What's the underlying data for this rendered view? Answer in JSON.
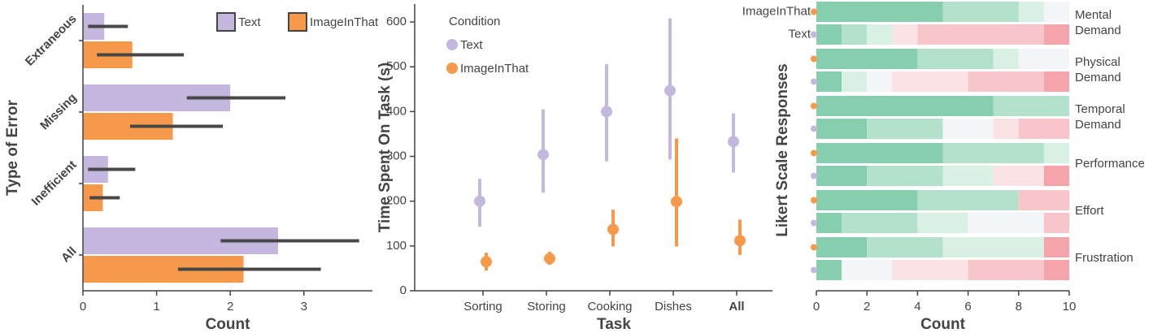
{
  "chart_data": [
    {
      "type": "bar",
      "orientation": "horizontal",
      "x_label": "Count",
      "y_label": "Type of Error",
      "categories": [
        "Extraneous",
        "Missing",
        "Inefficient",
        "All"
      ],
      "series": [
        {
          "name": "Text",
          "color": "#c5b8de",
          "values": [
            0.29,
            2.0,
            0.34,
            2.65
          ],
          "ci_low": [
            0.07,
            1.41,
            0.07,
            1.87
          ],
          "ci_high": [
            0.61,
            2.75,
            0.71,
            3.75
          ]
        },
        {
          "name": "ImageInThat",
          "color": "#f6994a",
          "values": [
            0.67,
            1.22,
            0.27,
            2.18
          ],
          "ci_low": [
            0.19,
            0.64,
            0.09,
            1.29
          ],
          "ci_high": [
            1.37,
            1.9,
            0.5,
            3.23
          ]
        }
      ],
      "xlim": [
        0,
        3.93
      ],
      "xticks": [
        0,
        1,
        2,
        3
      ],
      "legend": "upper right",
      "error_color": "#474747"
    },
    {
      "type": "point",
      "x_label": "Task",
      "y_label": "Time Spent On Task (s)",
      "legend_title": "Condition",
      "categories": [
        "Sorting",
        "Storing",
        "Cooking",
        "Dishes",
        "All"
      ],
      "bold_category": 4,
      "series": [
        {
          "name": "Text",
          "color": "#c5b8de",
          "values": [
            200,
            304,
            400,
            447,
            333
          ],
          "ci_low": [
            143,
            219,
            289,
            293,
            264
          ],
          "ci_high": [
            250,
            405,
            506,
            608,
            396
          ]
        },
        {
          "name": "ImageInThat",
          "color": "#f6994a",
          "values": [
            65,
            72,
            137,
            199,
            112
          ],
          "ci_low": [
            45,
            58,
            99,
            99,
            80
          ],
          "ci_high": [
            85,
            87,
            181,
            340,
            159
          ]
        }
      ],
      "ylim": [
        0,
        640
      ],
      "yticks": [
        0,
        100,
        200,
        300,
        400,
        500,
        600
      ]
    },
    {
      "type": "stacked_bar",
      "x_label": "Count",
      "y_label": "Likert Scale Responses",
      "categories": [
        "ImageInThat",
        "Text",
        null,
        null,
        null,
        null,
        null,
        null,
        null,
        null,
        null,
        null
      ],
      "groups": [
        "Mental Demand",
        "Physical Demand",
        "Temporal Demand",
        "Performance",
        "Effort",
        "Frustration"
      ],
      "marker_colors": [
        "#f6994a",
        "#c5b8de"
      ],
      "series": [
        {
          "color": "#86ceae",
          "values": [
            5,
            1,
            4,
            1,
            7,
            2,
            5,
            2,
            4,
            1,
            2,
            1
          ]
        },
        {
          "color": "#b3e1cc",
          "values": [
            3,
            1,
            3,
            0,
            3,
            3,
            4,
            3,
            4,
            3,
            3,
            0
          ]
        },
        {
          "color": "#d9f1e5",
          "values": [
            1,
            1,
            1,
            1,
            0,
            0,
            1,
            2,
            0,
            2,
            4,
            0
          ]
        },
        {
          "color": "#f3f5f8",
          "values": [
            1,
            0,
            2,
            1,
            0,
            2,
            0,
            0,
            0,
            3,
            0,
            2
          ]
        },
        {
          "color": "#fbe2e5",
          "values": [
            0,
            1,
            0,
            3,
            0,
            1,
            0,
            2,
            0,
            0,
            0,
            3
          ]
        },
        {
          "color": "#f8c6ca",
          "values": [
            0,
            5,
            0,
            3,
            0,
            2,
            0,
            0,
            2,
            1,
            0,
            3
          ]
        },
        {
          "color": "#f4a4aa",
          "values": [
            0,
            1,
            0,
            1,
            0,
            0,
            0,
            1,
            0,
            0,
            1,
            1
          ]
        }
      ],
      "xlim": [
        0,
        10
      ],
      "xticks": [
        0,
        2,
        4,
        6,
        8,
        10
      ]
    }
  ]
}
